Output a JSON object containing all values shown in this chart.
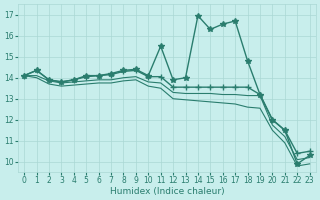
{
  "xlabel": "Humidex (Indice chaleur)",
  "bg_color": "#c8eeec",
  "grid_color": "#aad8d5",
  "line_color": "#2a7d6e",
  "x_ticks": [
    0,
    1,
    2,
    3,
    4,
    5,
    6,
    7,
    8,
    9,
    10,
    11,
    12,
    13,
    14,
    15,
    16,
    17,
    18,
    19,
    20,
    21,
    22,
    23
  ],
  "y_ticks": [
    10,
    11,
    12,
    13,
    14,
    15,
    16,
    17
  ],
  "xlim": [
    -0.5,
    23.5
  ],
  "ylim": [
    9.5,
    17.5
  ],
  "series": [
    {
      "x": [
        0,
        1,
        2,
        3,
        4,
        5,
        6,
        7,
        8,
        9,
        10,
        11,
        12,
        13,
        14,
        15,
        16,
        17,
        18,
        19,
        20,
        21,
        22,
        23
      ],
      "y": [
        14.1,
        14.35,
        13.9,
        13.8,
        13.9,
        14.1,
        14.1,
        14.2,
        14.35,
        14.4,
        14.1,
        15.5,
        13.9,
        14.0,
        16.95,
        16.3,
        16.55,
        16.7,
        14.8,
        13.2,
        12.0,
        11.5,
        9.9,
        10.3
      ],
      "marker": "*",
      "markersize": 4,
      "linewidth": 1.0,
      "linestyle": "-"
    },
    {
      "x": [
        0,
        1,
        2,
        3,
        4,
        5,
        6,
        7,
        8,
        9,
        10,
        11,
        12,
        13,
        14,
        15,
        16,
        17,
        18,
        19,
        20,
        21,
        22,
        23
      ],
      "y": [
        14.1,
        14.35,
        13.9,
        13.8,
        13.9,
        14.05,
        14.1,
        14.15,
        14.3,
        14.35,
        14.05,
        14.05,
        13.55,
        13.55,
        13.55,
        13.55,
        13.55,
        13.55,
        13.55,
        13.2,
        12.0,
        11.5,
        10.4,
        10.5
      ],
      "marker": "+",
      "markersize": 4,
      "linewidth": 1.0,
      "linestyle": "-"
    },
    {
      "x": [
        0,
        1,
        2,
        3,
        4,
        5,
        6,
        7,
        8,
        9,
        10,
        11,
        12,
        13,
        14,
        15,
        16,
        17,
        18,
        19,
        20,
        21,
        22,
        23
      ],
      "y": [
        14.1,
        14.1,
        13.85,
        13.75,
        13.8,
        13.85,
        13.9,
        13.9,
        14.0,
        14.05,
        13.8,
        13.75,
        13.3,
        13.25,
        13.25,
        13.25,
        13.2,
        13.2,
        13.15,
        13.15,
        11.75,
        11.2,
        10.1,
        10.2
      ],
      "marker": null,
      "markersize": 0,
      "linewidth": 0.8,
      "linestyle": "-"
    },
    {
      "x": [
        0,
        1,
        2,
        3,
        4,
        5,
        6,
        7,
        8,
        9,
        10,
        11,
        12,
        13,
        14,
        15,
        16,
        17,
        18,
        19,
        20,
        21,
        22,
        23
      ],
      "y": [
        14.1,
        14.0,
        13.7,
        13.6,
        13.65,
        13.7,
        13.75,
        13.75,
        13.85,
        13.9,
        13.6,
        13.5,
        13.0,
        12.95,
        12.9,
        12.85,
        12.8,
        12.75,
        12.6,
        12.55,
        11.5,
        10.9,
        9.8,
        9.9
      ],
      "marker": null,
      "markersize": 0,
      "linewidth": 0.8,
      "linestyle": "-"
    }
  ]
}
